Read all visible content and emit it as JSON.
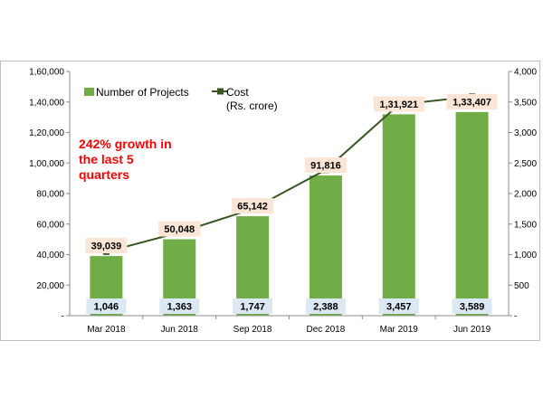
{
  "chart_data": {
    "type": "bar",
    "categories": [
      "Mar 2018",
      "Jun 2018",
      "Sep 2018",
      "Dec 2018",
      "Mar 2019",
      "Jun 2019"
    ],
    "series": [
      {
        "name": "Number of Projects",
        "type": "bar",
        "axis": "left",
        "color": "#70ad47",
        "values": [
          39039,
          50048,
          65142,
          91816,
          131921,
          133407
        ],
        "labels": [
          "39,039",
          "50,048",
          "65,142",
          "91,816",
          "1,31,921",
          "1,33,407"
        ]
      },
      {
        "name": "Cost",
        "name_line2": "(Rs. crore)",
        "type": "line",
        "axis": "right",
        "color": "#375623",
        "values": [
          1046,
          1363,
          1747,
          2388,
          3457,
          3589
        ],
        "labels": [
          "1,046",
          "1,363",
          "1,747",
          "2,388",
          "3,457",
          "3,589"
        ]
      }
    ],
    "y_left": {
      "range": [
        0,
        160000
      ],
      "ticks": [
        0,
        20000,
        40000,
        60000,
        80000,
        100000,
        120000,
        140000,
        160000
      ],
      "tick_labels": [
        "-",
        "20,000",
        "40,000",
        "60,000",
        "80,000",
        "1,00,000",
        "1,20,000",
        "1,40,000",
        "1,60,000"
      ]
    },
    "y_right": {
      "range": [
        0,
        4000
      ],
      "ticks": [
        0,
        500,
        1000,
        1500,
        2000,
        2500,
        3000,
        3500,
        4000
      ],
      "tick_labels": [
        "-",
        "500",
        "1,000",
        "1,500",
        "2,000",
        "2,500",
        "3,000",
        "3,500",
        "4,000"
      ]
    },
    "annotation": [
      "242% growth in",
      "the last 5",
      "quarters"
    ],
    "annotation_color": "#ff0000",
    "legend_position": "top-left",
    "grid": false
  }
}
